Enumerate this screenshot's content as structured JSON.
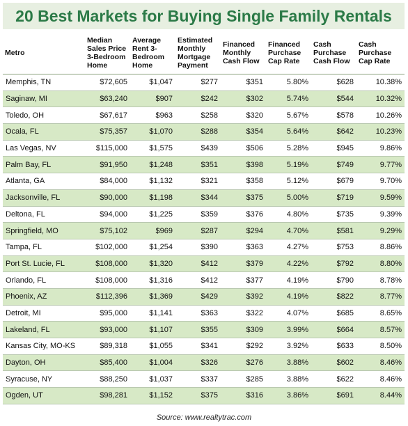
{
  "title": "20 Best Markets for Buying Single Family Rentals",
  "columns": [
    "Metro",
    "Median Sales Price 3-Bedroom Home",
    "Average Rent 3-Bedroom Home",
    "Estimated Monthly Mortgage Payment",
    "Financed Monthly Cash Flow",
    "Financed Purchase Cap Rate",
    "Cash Purchase Cash Flow",
    "Cash Purchase Cap Rate"
  ],
  "rows": [
    [
      "Memphis, TN",
      "$72,605",
      "$1,047",
      "$277",
      "$351",
      "5.80%",
      "$628",
      "10.38%"
    ],
    [
      "Saginaw, MI",
      "$63,240",
      "$907",
      "$242",
      "$302",
      "5.74%",
      "$544",
      "10.32%"
    ],
    [
      "Toledo, OH",
      "$67,617",
      "$963",
      "$258",
      "$320",
      "5.67%",
      "$578",
      "10.26%"
    ],
    [
      "Ocala, FL",
      "$75,357",
      "$1,070",
      "$288",
      "$354",
      "5.64%",
      "$642",
      "10.23%"
    ],
    [
      "Las Vegas, NV",
      "$115,000",
      "$1,575",
      "$439",
      "$506",
      "5.28%",
      "$945",
      "9.86%"
    ],
    [
      "Palm Bay, FL",
      "$91,950",
      "$1,248",
      "$351",
      "$398",
      "5.19%",
      "$749",
      "9.77%"
    ],
    [
      "Atlanta, GA",
      "$84,000",
      "$1,132",
      "$321",
      "$358",
      "5.12%",
      "$679",
      "9.70%"
    ],
    [
      "Jacksonville, FL",
      "$90,000",
      "$1,198",
      "$344",
      "$375",
      "5.00%",
      "$719",
      "9.59%"
    ],
    [
      "Deltona, FL",
      "$94,000",
      "$1,225",
      "$359",
      "$376",
      "4.80%",
      "$735",
      "9.39%"
    ],
    [
      "Springfield, MO",
      "$75,102",
      "$969",
      "$287",
      "$294",
      "4.70%",
      "$581",
      "9.29%"
    ],
    [
      "Tampa, FL",
      "$102,000",
      "$1,254",
      "$390",
      "$363",
      "4.27%",
      "$753",
      "8.86%"
    ],
    [
      "Port St. Lucie, FL",
      "$108,000",
      "$1,320",
      "$412",
      "$379",
      "4.22%",
      "$792",
      "8.80%"
    ],
    [
      "Orlando, FL",
      "$108,000",
      "$1,316",
      "$412",
      "$377",
      "4.19%",
      "$790",
      "8.78%"
    ],
    [
      "Phoenix, AZ",
      "$112,396",
      "$1,369",
      "$429",
      "$392",
      "4.19%",
      "$822",
      "8.77%"
    ],
    [
      "Detroit, MI",
      "$95,000",
      "$1,141",
      "$363",
      "$322",
      "4.07%",
      "$685",
      "8.65%"
    ],
    [
      "Lakeland, FL",
      "$93,000",
      "$1,107",
      "$355",
      "$309",
      "3.99%",
      "$664",
      "8.57%"
    ],
    [
      "Kansas City, MO-KS",
      "$89,318",
      "$1,055",
      "$341",
      "$292",
      "3.92%",
      "$633",
      "8.50%"
    ],
    [
      "Dayton, OH",
      "$85,400",
      "$1,004",
      "$326",
      "$276",
      "3.88%",
      "$602",
      "8.46%"
    ],
    [
      "Syracuse, NY",
      "$88,250",
      "$1,037",
      "$337",
      "$285",
      "3.88%",
      "$622",
      "8.46%"
    ],
    [
      "Ogden, UT",
      "$98,281",
      "$1,152",
      "$375",
      "$316",
      "3.86%",
      "$691",
      "8.44%"
    ]
  ],
  "source": "Source: www.realtytrac.com",
  "colors": {
    "title": "#2b7a47",
    "title_bg": "#e7efe1",
    "alt_row": "#d7e9c6"
  }
}
